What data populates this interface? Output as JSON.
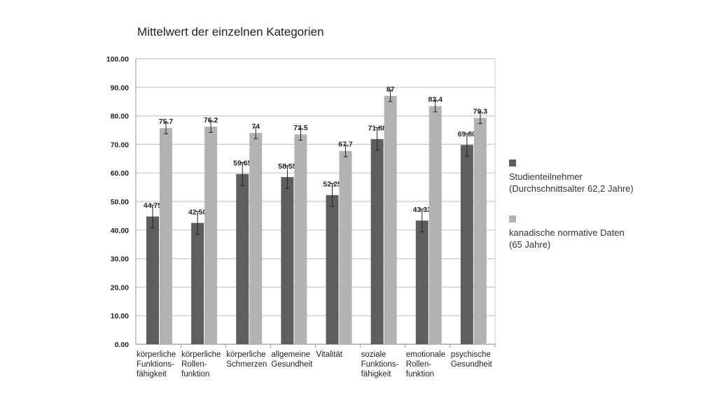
{
  "chart_data": {
    "type": "bar",
    "title": "Mittelwert der einzelnen Kategorien",
    "categories": [
      "körperliche\nFunktions-\nfähigkeit",
      "körperliche\nRollen-\nfunktion",
      "körperliche\nSchmerzen",
      "allgemeine\nGesundheit",
      "Vitalität",
      "soziale\nFunktions-\nfähigkeit",
      "emotionale\nRollen-\nfunktion",
      "psychische\nGesundheit"
    ],
    "series": [
      {
        "name": "Studienteilnehmer\n(Durchschnittsalter 62,2 Jahre)",
        "color": "#5e5e5e",
        "values": [
          44.75,
          42.5,
          59.65,
          58.55,
          52.25,
          71.88,
          43.33,
          69.8
        ],
        "labels": [
          "44.75",
          "42.50",
          "59.65",
          "58.55",
          "52.25",
          "71.88",
          "43.33",
          "69.80"
        ],
        "error": [
          4,
          4,
          4,
          4,
          4,
          4,
          4,
          4
        ]
      },
      {
        "name": "kanadische normative Daten\n(65 Jahre)",
        "color": "#b2b2b2",
        "values": [
          75.7,
          76.2,
          74,
          73.5,
          67.7,
          87,
          83.4,
          79.3
        ],
        "labels": [
          "75.7",
          "76.2",
          "74",
          "73.5",
          "67.7",
          "87",
          "83.4",
          "79.3"
        ],
        "error": [
          2,
          2,
          2,
          2,
          2,
          2,
          2,
          2
        ]
      }
    ],
    "ylim": [
      0,
      100
    ],
    "yticks": [
      "0.00",
      "10.00",
      "20.00",
      "30.00",
      "40.00",
      "50.00",
      "60.00",
      "70.00",
      "80.00",
      "90.00",
      "100.00"
    ],
    "grid": true,
    "legend": "right",
    "xlabel": "",
    "ylabel": ""
  }
}
